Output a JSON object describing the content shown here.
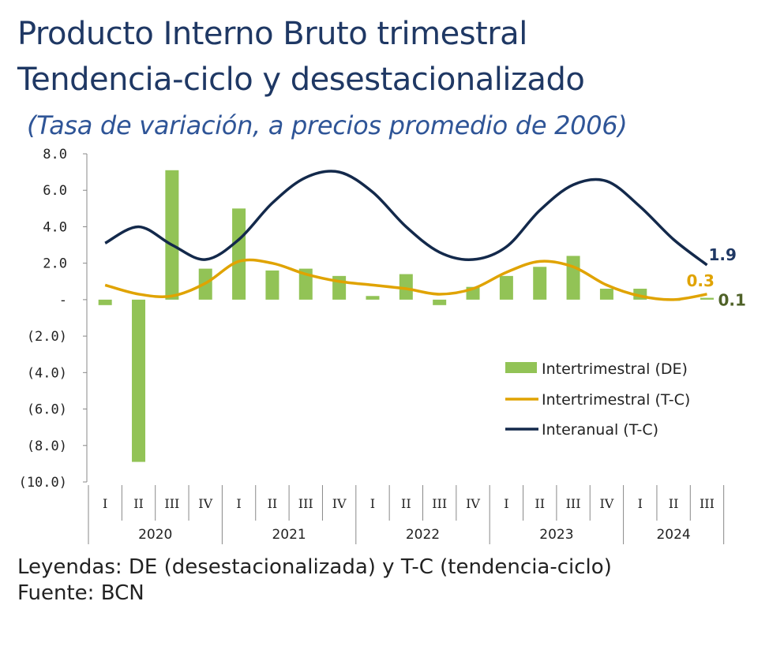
{
  "title_line1": "Producto Interno Bruto trimestral",
  "title_line2": "Tendencia-ciclo y desestacionalizado",
  "subtitle": "(Tasa de variación, a precios promedio de 2006)",
  "footnote": "Leyendas: DE (desestacionalizada) y T-C (tendencia-ciclo)",
  "source": "Fuente: BCN",
  "colors": {
    "bar": "#92c356",
    "tc_inter": "#e0a300",
    "interanual": "#13294b"
  },
  "chart_data": {
    "type": "bar",
    "ylim": [
      -10,
      8
    ],
    "yticks": [
      8,
      6,
      4,
      2,
      0,
      -2,
      -4,
      -6,
      -8,
      -10
    ],
    "ytick_labels": [
      "8.0",
      "6.0",
      "4.0",
      "2.0",
      "-",
      "(2.0)",
      "(4.0)",
      "(6.0)",
      "(8.0)",
      "(10.0)"
    ],
    "quarters": [
      "I",
      "II",
      "III",
      "IV",
      "I",
      "II",
      "III",
      "IV",
      "I",
      "II",
      "III",
      "IV",
      "I",
      "II",
      "III",
      "IV",
      "I",
      "II",
      "III"
    ],
    "years": [
      {
        "label": "2020",
        "count": 4
      },
      {
        "label": "2021",
        "count": 4
      },
      {
        "label": "2022",
        "count": 4
      },
      {
        "label": "2023",
        "count": 4
      },
      {
        "label": "2024",
        "count": 3
      }
    ],
    "series": [
      {
        "name": "Intertrimestral (DE)",
        "kind": "bar",
        "color": "#92c356",
        "values": [
          -0.3,
          -8.9,
          7.1,
          1.7,
          5.0,
          1.6,
          1.7,
          1.3,
          0.2,
          1.4,
          -0.3,
          0.7,
          1.3,
          1.8,
          2.4,
          0.6,
          0.6,
          0.0,
          0.1
        ]
      },
      {
        "name": "Intertrimestral (T-C)",
        "kind": "line",
        "color": "#e0a300",
        "values": [
          0.8,
          0.3,
          0.2,
          0.9,
          2.1,
          2.0,
          1.4,
          1.0,
          0.8,
          0.6,
          0.3,
          0.6,
          1.5,
          2.1,
          1.8,
          0.8,
          0.2,
          0.0,
          0.3
        ]
      },
      {
        "name": "Interanual (T-C)",
        "kind": "line",
        "color": "#13294b",
        "values": [
          3.1,
          4.0,
          3.0,
          2.2,
          3.3,
          5.3,
          6.7,
          7.0,
          5.9,
          4.0,
          2.6,
          2.2,
          2.9,
          4.9,
          6.3,
          6.5,
          5.1,
          3.3,
          1.9
        ]
      }
    ],
    "end_labels": [
      {
        "text": "1.9",
        "color": "#1f3864",
        "series": 2
      },
      {
        "text": "0.3",
        "color": "#e0a300",
        "series": 1
      },
      {
        "text": "0.1",
        "color": "#4f6228",
        "series": 0
      }
    ],
    "legend_position": "right"
  }
}
